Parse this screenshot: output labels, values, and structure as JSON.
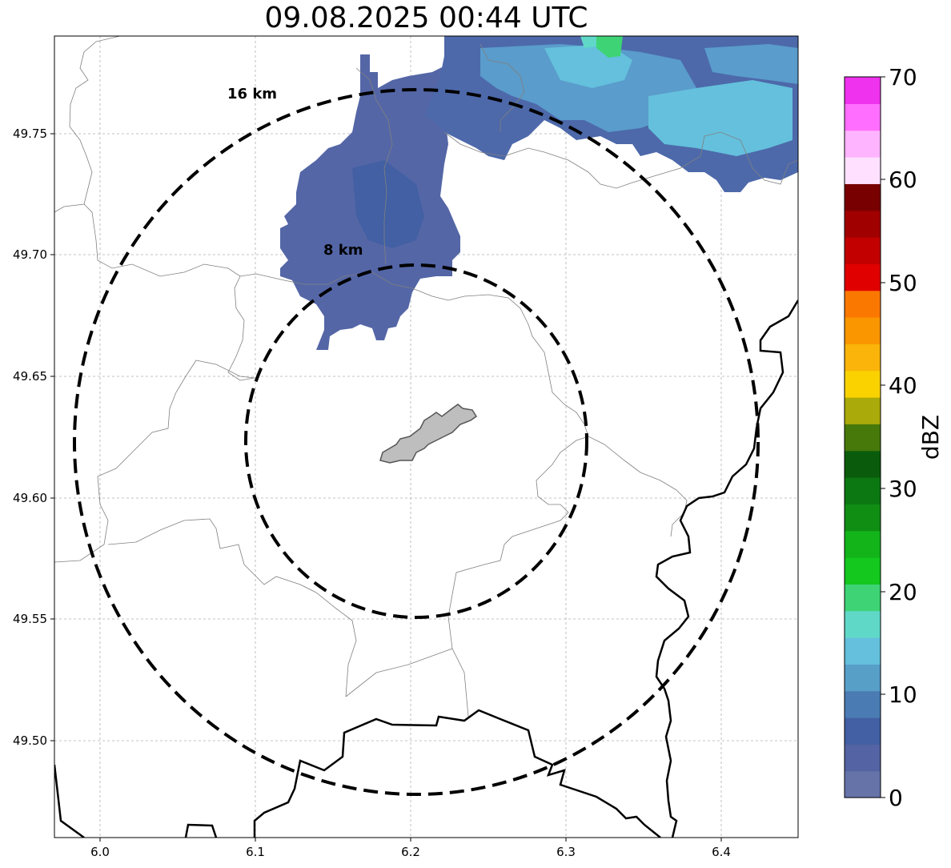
{
  "title": "09.08.2025 00:44 UTC",
  "axes": {
    "x_ticks": [
      "6.0",
      "6.1",
      "6.2",
      "6.3",
      "6.4"
    ],
    "y_ticks": [
      "49.75",
      "49.70",
      "49.65",
      "49.60",
      "49.55",
      "49.50"
    ],
    "grid": true
  },
  "range_rings": [
    {
      "label": "8 km"
    },
    {
      "label": "16 km"
    }
  ],
  "colorbar": {
    "unit": "dBZ",
    "ticks": [
      "0",
      "10",
      "20",
      "30",
      "40",
      "50",
      "60",
      "70"
    ],
    "colors": [
      "#6673a8",
      "#5463a3",
      "#4260a3",
      "#4a7bb3",
      "#589fc8",
      "#64c0dc",
      "#60d8c8",
      "#3ed476",
      "#14c81e",
      "#12b41a",
      "#108e14",
      "#0c7812",
      "#0a5c0c",
      "#46780a",
      "#aaaa0a",
      "#fad200",
      "#fab40a",
      "#fa9600",
      "#fa7800",
      "#e00000",
      "#c20000",
      "#a00000",
      "#780000",
      "#ffe1ff",
      "#ffb4ff",
      "#ff6eff",
      "#ee32ee"
    ]
  },
  "colors": {
    "ring": "#000000",
    "border_major": "#000000",
    "border_minor": "#808080",
    "city_fill": "#bebebe"
  }
}
